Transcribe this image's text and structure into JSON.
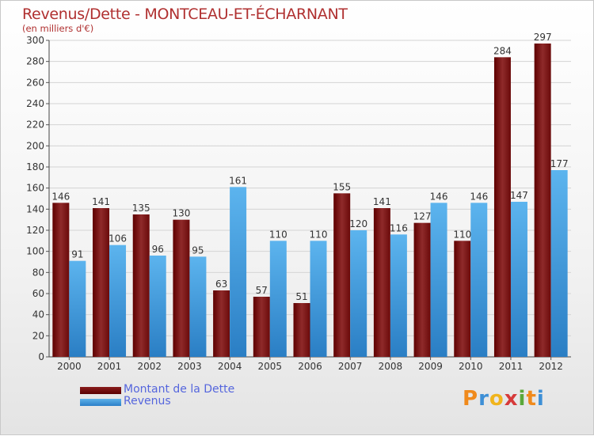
{
  "title": "Revenus/Dette - MONTCEAU-ET-ÉCHARNANT",
  "subtitle": "(en milliers d'€)",
  "legend": {
    "dette": "Montant de la Dette",
    "revenus": "Revenus"
  },
  "logo": {
    "text": "Proxiti",
    "letters": [
      "P",
      "r",
      "o",
      "x",
      "i",
      "t",
      "i"
    ],
    "colors": [
      "#f08a1c",
      "#3d8fd6",
      "#f0b41c",
      "#d63a3a",
      "#5aa83a",
      "#f08a1c",
      "#3d8fd6"
    ]
  },
  "colors": {
    "dette": "#7a1414",
    "revenus": "#4aa3e6",
    "title": "#b03030",
    "legend_text": "#5566dd"
  },
  "chart_data": {
    "type": "bar",
    "categories": [
      "2000",
      "2001",
      "2002",
      "2003",
      "2004",
      "2005",
      "2006",
      "2007",
      "2008",
      "2009",
      "2010",
      "2011",
      "2012"
    ],
    "series": [
      {
        "name": "Montant de la Dette",
        "values": [
          146,
          141,
          135,
          130,
          63,
          57,
          51,
          155,
          141,
          127,
          110,
          284,
          297
        ]
      },
      {
        "name": "Revenus",
        "values": [
          91,
          106,
          96,
          95,
          161,
          110,
          110,
          120,
          116,
          146,
          146,
          147,
          177
        ]
      }
    ],
    "ylim": [
      0,
      300
    ],
    "yticks": [
      0,
      20,
      40,
      60,
      80,
      100,
      120,
      140,
      160,
      180,
      200,
      220,
      240,
      260,
      280,
      300
    ],
    "grid": true,
    "legend_position": "bottom-left"
  }
}
